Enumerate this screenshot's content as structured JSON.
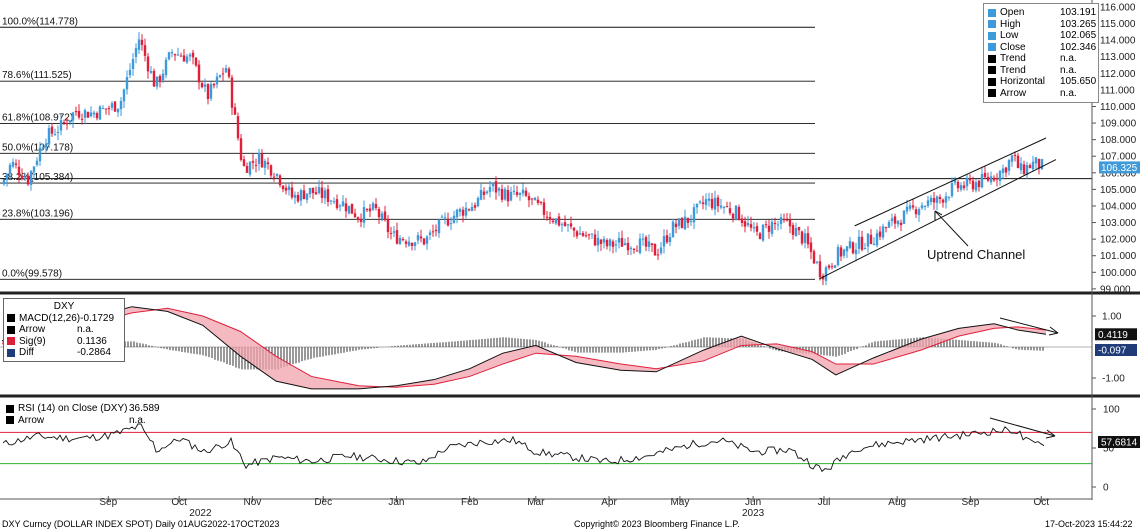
{
  "chart_data": [
    {
      "type": "candlestick",
      "title": "",
      "ylim": [
        98.5,
        116.3
      ],
      "y_ticks": [
        99,
        100,
        101,
        102,
        103,
        104,
        105,
        106,
        107,
        108,
        109,
        110,
        111,
        112,
        113,
        114,
        115,
        116
      ],
      "y_tick_labels": [
        "99.000",
        "100.000",
        "101.000",
        "102.000",
        "103.000",
        "104.000",
        "105.000",
        "106.000",
        "107.000",
        "108.000",
        "109.000",
        "110.000",
        "111.000",
        "112.000",
        "113.000",
        "114.000",
        "115.000",
        "116.000"
      ],
      "last_value_label": "106.325",
      "last_value": 106.325,
      "fib_levels": [
        {
          "label": "100.0%(114.778)",
          "value": 114.778
        },
        {
          "label": "78.6%(111.525)",
          "value": 111.525
        },
        {
          "label": "61.8%(108.972)",
          "value": 108.972
        },
        {
          "label": "50.0%(107.178)",
          "value": 107.178
        },
        {
          "label": "38.2%(105.384)",
          "value": 105.384
        },
        {
          "label": "23.8%(103.196)",
          "value": 103.196
        },
        {
          "label": "0.0%(99.578)",
          "value": 99.578
        }
      ],
      "horizontal_line": 105.65,
      "channel": {
        "lower": [
          [
            "2023-07-13",
            99.6
          ],
          [
            "2023-10-17",
            106.8
          ]
        ],
        "upper": [
          [
            "2023-07-28",
            102.8
          ],
          [
            "2023-10-17",
            108.1
          ]
        ]
      },
      "annotation": {
        "text": "Uptrend Channel",
        "arrow_to": [
          "2023-08-31",
          103.7
        ]
      },
      "close_series": [
        [
          "2022-08-01",
          105.3
        ],
        [
          "2022-08-05",
          106.6
        ],
        [
          "2022-08-12",
          105.6
        ],
        [
          "2022-08-19",
          108.1
        ],
        [
          "2022-08-26",
          108.8
        ],
        [
          "2022-09-01",
          109.7
        ],
        [
          "2022-09-08",
          109.6
        ],
        [
          "2022-09-13",
          109.8
        ],
        [
          "2022-09-20",
          110.2
        ],
        [
          "2022-09-28",
          114.1
        ],
        [
          "2022-10-05",
          111.2
        ],
        [
          "2022-10-12",
          113.3
        ],
        [
          "2022-10-20",
          112.9
        ],
        [
          "2022-10-27",
          110.6
        ],
        [
          "2022-11-04",
          112.4
        ],
        [
          "2022-11-11",
          106.3
        ],
        [
          "2022-11-18",
          106.9
        ],
        [
          "2022-11-25",
          106.0
        ],
        [
          "2022-12-02",
          104.5
        ],
        [
          "2022-12-09",
          104.9
        ],
        [
          "2022-12-16",
          104.6
        ],
        [
          "2022-12-23",
          104.2
        ],
        [
          "2022-12-30",
          103.4
        ],
        [
          "2023-01-06",
          103.8
        ],
        [
          "2023-01-13",
          102.2
        ],
        [
          "2023-01-20",
          102.0
        ],
        [
          "2023-01-27",
          101.9
        ],
        [
          "2023-02-03",
          102.9
        ],
        [
          "2023-02-10",
          103.6
        ],
        [
          "2023-02-17",
          104.1
        ],
        [
          "2023-02-24",
          105.2
        ],
        [
          "2023-03-03",
          104.6
        ],
        [
          "2023-03-10",
          104.6
        ],
        [
          "2023-03-17",
          103.8
        ],
        [
          "2023-03-24",
          103.1
        ],
        [
          "2023-03-31",
          102.5
        ],
        [
          "2023-04-07",
          102.1
        ],
        [
          "2023-04-14",
          101.6
        ],
        [
          "2023-04-21",
          101.8
        ],
        [
          "2023-04-28",
          101.7
        ],
        [
          "2023-05-05",
          101.2
        ],
        [
          "2023-05-12",
          102.7
        ],
        [
          "2023-05-19",
          103.2
        ],
        [
          "2023-05-26",
          104.3
        ],
        [
          "2023-06-02",
          104.0
        ],
        [
          "2023-06-09",
          103.5
        ],
        [
          "2023-06-16",
          102.2
        ],
        [
          "2023-06-23",
          102.9
        ],
        [
          "2023-06-30",
          102.9
        ],
        [
          "2023-07-07",
          101.9
        ],
        [
          "2023-07-14",
          99.9
        ],
        [
          "2023-07-21",
          101.1
        ],
        [
          "2023-07-28",
          101.6
        ],
        [
          "2023-08-04",
          102.0
        ],
        [
          "2023-08-11",
          102.8
        ],
        [
          "2023-08-18",
          103.4
        ],
        [
          "2023-08-25",
          104.1
        ],
        [
          "2023-09-01",
          104.3
        ],
        [
          "2023-09-08",
          105.1
        ],
        [
          "2023-09-15",
          105.3
        ],
        [
          "2023-09-22",
          105.6
        ],
        [
          "2023-09-29",
          106.2
        ],
        [
          "2023-10-03",
          107.0
        ],
        [
          "2023-10-06",
          106.1
        ],
        [
          "2023-10-12",
          106.6
        ],
        [
          "2023-10-17",
          106.3
        ]
      ],
      "legend": [
        {
          "name": "Open",
          "value": "103.191",
          "color": "#3e9ad8"
        },
        {
          "name": "High",
          "value": "103.265",
          "color": "#3e9ad8"
        },
        {
          "name": "Low",
          "value": "102.065",
          "color": "#3e9ad8"
        },
        {
          "name": "Close",
          "value": "102.346",
          "color": "#3e9ad8"
        },
        {
          "name": "Trend",
          "value": "n.a.",
          "color": "#000000"
        },
        {
          "name": "Trend",
          "value": "n.a.",
          "color": "#000000"
        },
        {
          "name": "Horizontal",
          "value": "105.650",
          "color": "#000000"
        },
        {
          "name": "Arrow",
          "value": "n.a.",
          "color": "#000000"
        }
      ],
      "colors": {
        "up": "#3e9ad8",
        "down": "#e0203b"
      }
    },
    {
      "type": "line",
      "title": "DXY",
      "ylim": [
        -1.7,
        1.7
      ],
      "y_ticks": [
        1.0,
        -1.0
      ],
      "y_tick_labels": [
        "1.00",
        "-1.00"
      ],
      "last_value_labels": [
        "0.4119",
        "-0.097"
      ],
      "legend": [
        {
          "name": "MACD(12,26)",
          "value": "-0.1729",
          "color": "#000000"
        },
        {
          "name": "Arrow",
          "value": "n.a.",
          "color": "#000000"
        },
        {
          "name": "Sig(9)",
          "value": "0.1136",
          "color": "#e0203b"
        },
        {
          "name": "Diff",
          "value": "-0.2864",
          "color": "#1f3c78"
        }
      ],
      "macd": [
        [
          "2022-08-01",
          0.2
        ],
        [
          "2022-08-20",
          0.5
        ],
        [
          "2022-09-05",
          0.9
        ],
        [
          "2022-09-25",
          1.3
        ],
        [
          "2022-10-10",
          1.15
        ],
        [
          "2022-10-25",
          0.7
        ],
        [
          "2022-11-10",
          -0.3
        ],
        [
          "2022-11-25",
          -1.1
        ],
        [
          "2022-12-10",
          -1.35
        ],
        [
          "2022-12-30",
          -1.35
        ],
        [
          "2023-01-15",
          -1.25
        ],
        [
          "2023-01-31",
          -1.05
        ],
        [
          "2023-02-15",
          -0.7
        ],
        [
          "2023-03-01",
          -0.2
        ],
        [
          "2023-03-15",
          0.05
        ],
        [
          "2023-04-01",
          -0.5
        ],
        [
          "2023-04-20",
          -0.75
        ],
        [
          "2023-05-05",
          -0.8
        ],
        [
          "2023-05-25",
          -0.1
        ],
        [
          "2023-06-10",
          0.35
        ],
        [
          "2023-06-25",
          -0.05
        ],
        [
          "2023-07-10",
          -0.4
        ],
        [
          "2023-07-20",
          -0.9
        ],
        [
          "2023-08-05",
          -0.35
        ],
        [
          "2023-08-25",
          0.25
        ],
        [
          "2023-09-10",
          0.6
        ],
        [
          "2023-09-25",
          0.75
        ],
        [
          "2023-10-05",
          0.55
        ],
        [
          "2023-10-17",
          0.41
        ]
      ],
      "signal": [
        [
          "2022-08-01",
          0.1
        ],
        [
          "2022-08-20",
          0.35
        ],
        [
          "2022-09-05",
          0.7
        ],
        [
          "2022-09-25",
          1.1
        ],
        [
          "2022-10-10",
          1.25
        ],
        [
          "2022-10-25",
          1.0
        ],
        [
          "2022-11-10",
          0.5
        ],
        [
          "2022-11-25",
          -0.3
        ],
        [
          "2022-12-10",
          -0.95
        ],
        [
          "2022-12-30",
          -1.25
        ],
        [
          "2023-01-15",
          -1.3
        ],
        [
          "2023-01-31",
          -1.2
        ],
        [
          "2023-02-15",
          -0.95
        ],
        [
          "2023-03-01",
          -0.55
        ],
        [
          "2023-03-15",
          -0.2
        ],
        [
          "2023-04-01",
          -0.3
        ],
        [
          "2023-04-20",
          -0.55
        ],
        [
          "2023-05-05",
          -0.7
        ],
        [
          "2023-05-25",
          -0.45
        ],
        [
          "2023-06-10",
          0.05
        ],
        [
          "2023-06-25",
          0.1
        ],
        [
          "2023-07-10",
          -0.15
        ],
        [
          "2023-07-20",
          -0.55
        ],
        [
          "2023-08-05",
          -0.55
        ],
        [
          "2023-08-25",
          -0.1
        ],
        [
          "2023-09-10",
          0.35
        ],
        [
          "2023-09-25",
          0.6
        ],
        [
          "2023-10-05",
          0.65
        ],
        [
          "2023-10-17",
          0.55
        ]
      ]
    },
    {
      "type": "line",
      "title": "",
      "ylim": [
        -10,
        120
      ],
      "y_ticks": [
        100,
        50,
        0
      ],
      "y_tick_labels": [
        "100",
        "50",
        "0"
      ],
      "last_value_label": "57.6814",
      "overbought": 70,
      "oversold": 30,
      "legend": [
        {
          "name": "RSI (14)  on Close (DXY)",
          "value": "36.589",
          "color": "#000000"
        },
        {
          "name": "Arrow",
          "value": "n.a.",
          "color": "#000000"
        }
      ],
      "rsi": [
        [
          "2022-08-01",
          55
        ],
        [
          "2022-08-15",
          65
        ],
        [
          "2022-09-01",
          62
        ],
        [
          "2022-09-15",
          66
        ],
        [
          "2022-09-28",
          78
        ],
        [
          "2022-10-05",
          47
        ],
        [
          "2022-10-15",
          62
        ],
        [
          "2022-10-25",
          45
        ],
        [
          "2022-11-05",
          58
        ],
        [
          "2022-11-12",
          28
        ],
        [
          "2022-11-25",
          38
        ],
        [
          "2022-12-10",
          33
        ],
        [
          "2022-12-25",
          40
        ],
        [
          "2023-01-10",
          35
        ],
        [
          "2023-01-25",
          30
        ],
        [
          "2023-02-05",
          50
        ],
        [
          "2023-02-20",
          58
        ],
        [
          "2023-03-05",
          60
        ],
        [
          "2023-03-15",
          45
        ],
        [
          "2023-03-31",
          38
        ],
        [
          "2023-04-14",
          32
        ],
        [
          "2023-05-01",
          40
        ],
        [
          "2023-05-20",
          55
        ],
        [
          "2023-06-01",
          60
        ],
        [
          "2023-06-15",
          45
        ],
        [
          "2023-06-30",
          48
        ],
        [
          "2023-07-14",
          20
        ],
        [
          "2023-07-28",
          50
        ],
        [
          "2023-08-15",
          58
        ],
        [
          "2023-08-31",
          63
        ],
        [
          "2023-09-15",
          68
        ],
        [
          "2023-09-25",
          72
        ],
        [
          "2023-10-03",
          73
        ],
        [
          "2023-10-10",
          55
        ],
        [
          "2023-10-17",
          57.7
        ]
      ]
    }
  ],
  "x_axis": {
    "months": [
      {
        "label": "Sep",
        "date": "2022-09-15"
      },
      {
        "label": "Oct",
        "date": "2022-10-15"
      },
      {
        "label": "Nov",
        "date": "2022-11-15"
      },
      {
        "label": "Dec",
        "date": "2022-12-15"
      },
      {
        "label": "Jan",
        "date": "2023-01-15"
      },
      {
        "label": "Feb",
        "date": "2023-02-15"
      },
      {
        "label": "Mar",
        "date": "2023-03-15"
      },
      {
        "label": "Apr",
        "date": "2023-04-15"
      },
      {
        "label": "May",
        "date": "2023-05-15"
      },
      {
        "label": "Jun",
        "date": "2023-06-15"
      },
      {
        "label": "Jul",
        "date": "2023-07-15"
      },
      {
        "label": "Aug",
        "date": "2023-08-15"
      },
      {
        "label": "Sep",
        "date": "2023-09-15"
      },
      {
        "label": "Oct",
        "date": "2023-10-15"
      }
    ],
    "years": [
      {
        "label": "2022",
        "date": "2022-10-24"
      },
      {
        "label": "2023",
        "date": "2023-06-15"
      }
    ]
  },
  "footer": {
    "left": "DXY Curncy (DOLLAR INDEX SPOT)  Daily 01AUG2022-17OCT2023",
    "center": "Copyright© 2023 Bloomberg Finance L.P.",
    "right": "17-Oct-2023 15:44:22"
  }
}
